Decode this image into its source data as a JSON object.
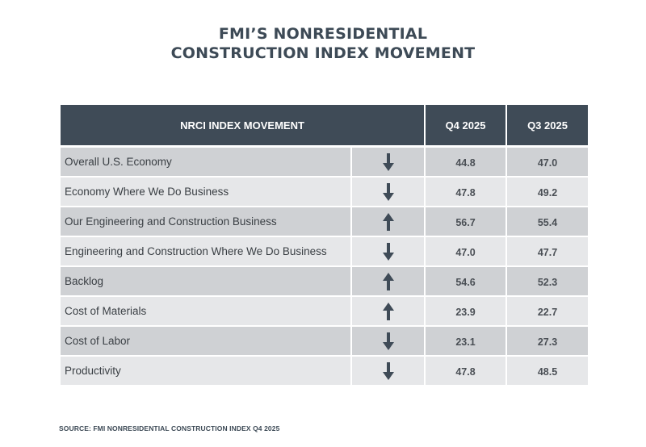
{
  "title": {
    "line1": "FMI’S NONRESIDENTIAL",
    "line2": "CONSTRUCTION INDEX MOVEMENT"
  },
  "colors": {
    "header_bg": "#3f4b57",
    "row_dark": "#cfd1d4",
    "row_light": "#e6e7e9",
    "arrow": "#3f4b57"
  },
  "chart_data": {
    "type": "table",
    "columns": [
      "NRCI INDEX MOVEMENT",
      "",
      "Q4 2025",
      "Q3 2025"
    ],
    "rows": [
      {
        "label": "Overall U.S. Economy",
        "direction": "down",
        "q4": "44.8",
        "q3": "47.0"
      },
      {
        "label": "Economy Where We Do Business",
        "direction": "down",
        "q4": "47.8",
        "q3": "49.2"
      },
      {
        "label": "Our Engineering and Construction Business",
        "direction": "up",
        "q4": "56.7",
        "q3": "55.4"
      },
      {
        "label": "Engineering and Construction Where We Do Business",
        "direction": "down",
        "q4": "47.0",
        "q3": "47.7"
      },
      {
        "label": "Backlog",
        "direction": "up",
        "q4": "54.6",
        "q3": "52.3"
      },
      {
        "label": "Cost of Materials",
        "direction": "up",
        "q4": "23.9",
        "q3": "22.7"
      },
      {
        "label": "Cost of Labor",
        "direction": "down",
        "q4": "23.1",
        "q3": "27.3"
      },
      {
        "label": "Productivity",
        "direction": "down",
        "q4": "47.8",
        "q3": "48.5"
      }
    ]
  },
  "source": "SOURCE: FMI NONRESIDENTIAL CONSTRUCTION INDEX Q4 2025"
}
